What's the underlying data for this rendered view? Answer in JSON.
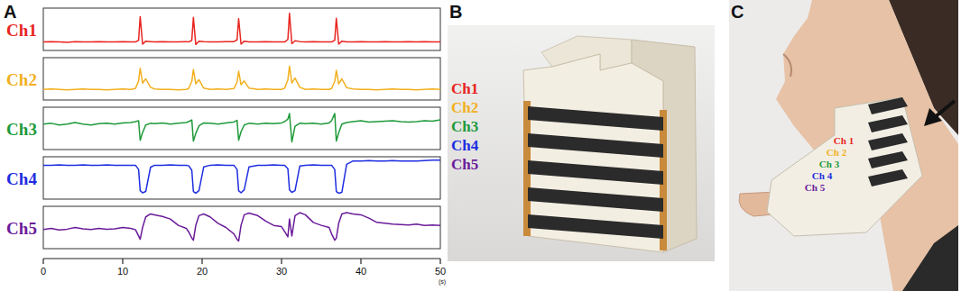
{
  "chart_data": [
    {
      "type": "line",
      "x": [
        0,
        1,
        2,
        3,
        4,
        5,
        6,
        7,
        8,
        9,
        10,
        11,
        11.6,
        12,
        12.2,
        12.5,
        12.9,
        13.5,
        14,
        15,
        16,
        17,
        18,
        18.3,
        18.7,
        18.9,
        19.2,
        19.6,
        20.2,
        21,
        22,
        23,
        24,
        24.4,
        24.6,
        24.9,
        25.3,
        25.9,
        27,
        28,
        29,
        30,
        30.4,
        30.8,
        31,
        31.3,
        31.7,
        32.3,
        33,
        34,
        35,
        36,
        36.3,
        36.7,
        36.9,
        37.2,
        37.6,
        38.2,
        39,
        40,
        41,
        42,
        43,
        44,
        45,
        46,
        47,
        48,
        49,
        50
      ],
      "series": [
        {
          "name": "Ch1",
          "color": "#e8251f",
          "values": [
            20,
            21,
            20,
            19,
            21,
            20,
            20,
            21,
            20,
            20,
            21,
            20,
            20,
            24,
            80,
            15,
            22,
            21,
            20,
            21,
            20,
            20,
            21,
            20,
            24,
            78,
            14,
            22,
            21,
            20,
            20,
            21,
            21,
            25,
            75,
            15,
            22,
            20,
            20,
            21,
            20,
            20,
            20,
            26,
            88,
            16,
            23,
            21,
            20,
            21,
            20,
            20,
            20,
            24,
            76,
            15,
            22,
            20,
            20,
            21,
            20,
            20,
            21,
            20,
            20,
            21,
            20,
            21,
            20,
            20
          ]
        }
      ],
      "xlim": [
        0,
        50
      ],
      "ylim": [
        0,
        100
      ],
      "tick_labels": false
    },
    {
      "type": "line",
      "x": [
        0,
        1,
        2,
        3,
        4,
        5,
        6,
        7,
        8,
        9,
        10,
        11,
        11.6,
        12,
        12.2,
        12.5,
        12.9,
        13.5,
        14,
        15,
        16,
        17,
        18,
        18.3,
        18.7,
        18.9,
        19.2,
        19.6,
        20.2,
        21,
        22,
        23,
        24,
        24.4,
        24.6,
        24.9,
        25.3,
        25.9,
        27,
        28,
        29,
        30,
        30.4,
        30.8,
        31,
        31.3,
        31.7,
        32.3,
        33,
        34,
        35,
        36,
        36.3,
        36.7,
        36.9,
        37.2,
        37.6,
        38.2,
        39,
        40,
        41,
        42,
        43,
        44,
        45,
        46,
        47,
        48,
        49,
        50
      ],
      "series": [
        {
          "name": "Ch2",
          "color": "#f2b01e",
          "values": [
            25,
            26,
            25,
            24,
            25,
            26,
            25,
            25,
            24,
            25,
            26,
            25,
            27,
            45,
            75,
            40,
            50,
            30,
            26,
            25,
            25,
            24,
            25,
            27,
            44,
            72,
            38,
            48,
            28,
            25,
            26,
            25,
            27,
            42,
            68,
            36,
            45,
            28,
            25,
            26,
            25,
            25,
            28,
            48,
            80,
            40,
            52,
            30,
            25,
            26,
            25,
            25,
            27,
            44,
            70,
            38,
            50,
            29,
            26,
            25,
            25,
            24,
            25,
            26,
            25,
            25,
            24,
            25,
            26,
            25
          ]
        }
      ],
      "xlim": [
        0,
        50
      ],
      "ylim": [
        0,
        100
      ],
      "tick_labels": false
    },
    {
      "type": "line",
      "x": [
        0,
        1,
        2,
        3,
        4,
        5,
        6,
        7,
        8,
        9,
        10,
        11,
        11.6,
        12,
        12.2,
        12.5,
        12.9,
        13.5,
        14,
        15,
        16,
        17,
        18,
        18.3,
        18.7,
        18.9,
        19.2,
        19.6,
        20.2,
        21,
        22,
        23,
        24,
        24.4,
        24.6,
        24.9,
        25.3,
        25.9,
        27,
        28,
        29,
        30,
        30.4,
        30.8,
        31,
        31.3,
        31.7,
        32.3,
        33,
        34,
        35,
        36,
        36.3,
        36.7,
        36.9,
        37.2,
        37.6,
        38.2,
        39,
        40,
        41,
        42,
        43,
        44,
        45,
        46,
        47,
        48,
        49,
        50
      ],
      "series": [
        {
          "name": "Ch3",
          "color": "#1e9a3a",
          "values": [
            60,
            62,
            58,
            60,
            64,
            60,
            58,
            61,
            62,
            60,
            63,
            64,
            66,
            68,
            22,
            40,
            58,
            62,
            61,
            63,
            60,
            62,
            64,
            66,
            70,
            20,
            38,
            56,
            63,
            62,
            60,
            63,
            65,
            69,
            22,
            42,
            58,
            62,
            60,
            62,
            61,
            63,
            66,
            72,
            85,
            18,
            55,
            62,
            61,
            62,
            60,
            63,
            68,
            85,
            20,
            40,
            60,
            64,
            66,
            68,
            65,
            66,
            67,
            68,
            66,
            65,
            66,
            68,
            67,
            70
          ]
        }
      ],
      "xlim": [
        0,
        50
      ],
      "ylim": [
        0,
        100
      ],
      "tick_labels": false
    },
    {
      "type": "line",
      "x": [
        0,
        1,
        2,
        3,
        4,
        5,
        6,
        7,
        8,
        9,
        10,
        11,
        11.6,
        12,
        12.2,
        12.5,
        12.9,
        13.5,
        14,
        15,
        16,
        17,
        18,
        18.3,
        18.7,
        18.9,
        19.2,
        19.6,
        20.2,
        21,
        22,
        23,
        24,
        24.4,
        24.6,
        24.9,
        25.3,
        25.9,
        27,
        28,
        29,
        30,
        30.4,
        30.8,
        31,
        31.3,
        31.7,
        32.3,
        33,
        34,
        35,
        36,
        36.3,
        36.7,
        36.9,
        37.2,
        37.6,
        38.2,
        39,
        40,
        41,
        42,
        43,
        44,
        45,
        46,
        47,
        48,
        49,
        50
      ],
      "series": [
        {
          "name": "Ch4",
          "color": "#1f2ee0",
          "values": [
            80,
            80,
            81,
            80,
            80,
            81,
            80,
            80,
            81,
            80,
            80,
            80,
            80,
            70,
            20,
            15,
            18,
            75,
            80,
            80,
            81,
            80,
            80,
            79,
            68,
            18,
            14,
            20,
            76,
            80,
            81,
            80,
            80,
            70,
            20,
            15,
            22,
            76,
            80,
            80,
            81,
            80,
            80,
            72,
            22,
            16,
            20,
            78,
            80,
            81,
            80,
            80,
            80,
            70,
            18,
            14,
            16,
            82,
            90,
            90,
            91,
            90,
            90,
            91,
            90,
            90,
            90,
            91,
            92,
            92
          ]
        }
      ],
      "xlim": [
        0,
        50
      ],
      "ylim": [
        0,
        100
      ],
      "tick_labels": false
    },
    {
      "type": "line",
      "x": [
        0,
        1,
        2,
        3,
        4,
        5,
        6,
        7,
        8,
        9,
        10,
        11,
        11.6,
        12,
        12.2,
        12.5,
        12.9,
        13.5,
        14,
        15,
        16,
        17,
        18,
        18.3,
        18.7,
        18.9,
        19.2,
        19.6,
        20.2,
        21,
        22,
        23,
        24,
        24.4,
        24.6,
        24.9,
        25.3,
        25.9,
        27,
        28,
        29,
        30,
        30.4,
        30.8,
        31,
        31.3,
        31.7,
        32.3,
        33,
        34,
        35,
        36,
        36.3,
        36.7,
        36.9,
        37.2,
        37.6,
        38.2,
        39,
        40,
        41,
        42,
        43,
        44,
        45,
        46,
        47,
        48,
        49,
        50
      ],
      "series": [
        {
          "name": "Ch5",
          "color": "#6a1b9a",
          "values": [
            45,
            48,
            44,
            46,
            50,
            47,
            45,
            48,
            46,
            47,
            50,
            48,
            45,
            30,
            22,
            50,
            75,
            82,
            80,
            76,
            70,
            55,
            48,
            40,
            25,
            20,
            55,
            78,
            82,
            75,
            60,
            50,
            35,
            22,
            18,
            55,
            80,
            84,
            78,
            65,
            55,
            52,
            40,
            28,
            70,
            30,
            78,
            85,
            80,
            62,
            55,
            50,
            35,
            20,
            25,
            60,
            82,
            85,
            82,
            80,
            72,
            62,
            60,
            58,
            57,
            56,
            58,
            55,
            56,
            55
          ]
        }
      ],
      "xlim": [
        0,
        50
      ],
      "ylim": [
        0,
        100
      ],
      "xticks": [
        0,
        10,
        20,
        30,
        40,
        50
      ],
      "xlabel": "(s)",
      "tick_labels": "x"
    }
  ],
  "panels": [
    {
      "label": "A"
    },
    {
      "label": "B",
      "channel_labels": [
        {
          "text": "Ch1",
          "color": "#e8251f"
        },
        {
          "text": "Ch2",
          "color": "#f2b01e"
        },
        {
          "text": "Ch3",
          "color": "#1e9a3a"
        },
        {
          "text": "Ch4",
          "color": "#1f2ee0"
        },
        {
          "text": "Ch5",
          "color": "#6a1b9a"
        }
      ]
    },
    {
      "label": "C",
      "channel_labels": [
        {
          "text": "Ch 1",
          "color": "#e8251f"
        },
        {
          "text": "Ch 2",
          "color": "#f2b01e"
        },
        {
          "text": "Ch 3",
          "color": "#1e9a3a"
        },
        {
          "text": "Ch 4",
          "color": "#1f2ee0"
        },
        {
          "text": "Ch 5",
          "color": "#6a1b9a"
        }
      ]
    }
  ]
}
